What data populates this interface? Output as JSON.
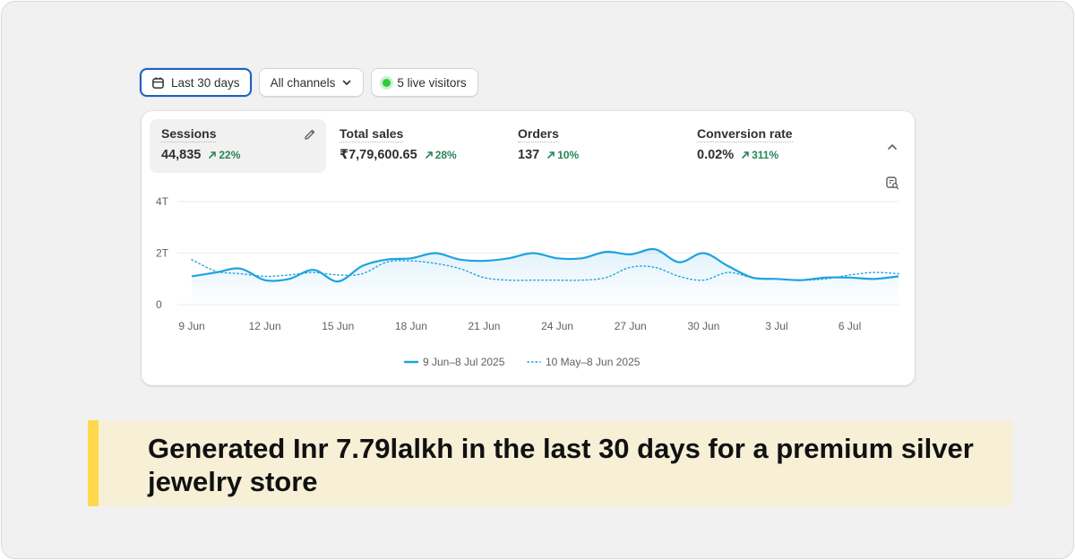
{
  "toolbar": {
    "date_range_label": "Last 30 days",
    "channels_label": "All channels",
    "live_visitors_label": "5 live visitors"
  },
  "metrics": [
    {
      "label": "Sessions",
      "value": "44,835",
      "change": "22%"
    },
    {
      "label": "Total sales",
      "value": "₹7,79,600.65",
      "change": "28%"
    },
    {
      "label": "Orders",
      "value": "137",
      "change": "10%"
    },
    {
      "label": "Conversion rate",
      "value": "0.02%",
      "change": "311%"
    }
  ],
  "colors": {
    "accent": "#1fa2e0",
    "positive": "#29845a",
    "live": "#2ecc40",
    "highlight_bar": "#ffd84d",
    "caption_bg": "#f7efd6"
  },
  "chart_data": {
    "type": "line",
    "ylabel": "",
    "xlabel": "",
    "y_ticks": [
      "0",
      "2T",
      "4T"
    ],
    "ylim": [
      0,
      4000
    ],
    "x_ticks": [
      "9 Jun",
      "12 Jun",
      "15 Jun",
      "18 Jun",
      "21 Jun",
      "24 Jun",
      "27 Jun",
      "30 Jun",
      "3 Jul",
      "6 Jul"
    ],
    "grid": true,
    "legend_position": "bottom",
    "series": [
      {
        "name": "9 Jun–8 Jul 2025",
        "style": "solid",
        "values": [
          1100,
          1250,
          1400,
          950,
          1000,
          1350,
          900,
          1500,
          1750,
          1800,
          2000,
          1750,
          1700,
          1800,
          2000,
          1800,
          1800,
          2050,
          1950,
          2150,
          1650,
          2000,
          1500,
          1050,
          1000,
          950,
          1050,
          1050,
          1000,
          1100
        ]
      },
      {
        "name": "10 May–8 Jun 2025",
        "style": "dotted",
        "values": [
          1750,
          1300,
          1200,
          1100,
          1150,
          1250,
          1150,
          1200,
          1650,
          1700,
          1600,
          1400,
          1050,
          950,
          950,
          950,
          950,
          1050,
          1450,
          1450,
          1100,
          950,
          1250,
          1050,
          1000,
          950,
          1000,
          1150,
          1250,
          1200
        ]
      }
    ]
  },
  "caption": {
    "text": "Generated Inr 7.79lalkh in the last 30 days for a premium silver jewelry store"
  }
}
